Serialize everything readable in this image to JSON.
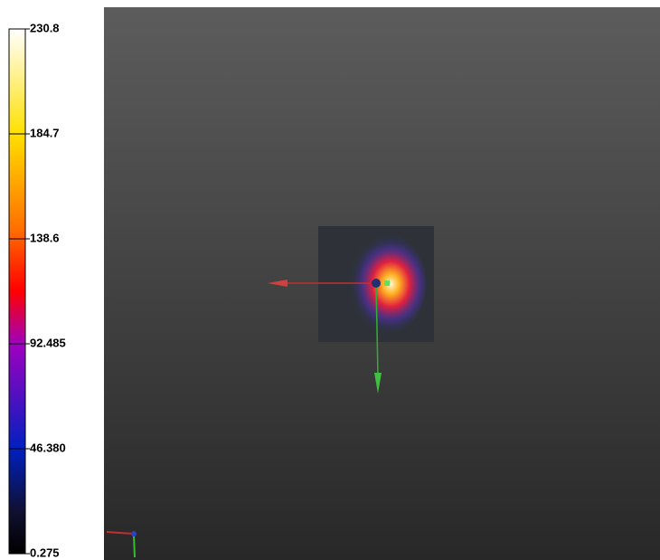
{
  "colorbar": {
    "lim": [
      0.275,
      230.8
    ],
    "ticks": [
      0.275,
      {
        "value": 46.38,
        "label": "46.380"
      },
      92.485,
      138.6,
      184.7,
      230.8
    ]
  }
}
